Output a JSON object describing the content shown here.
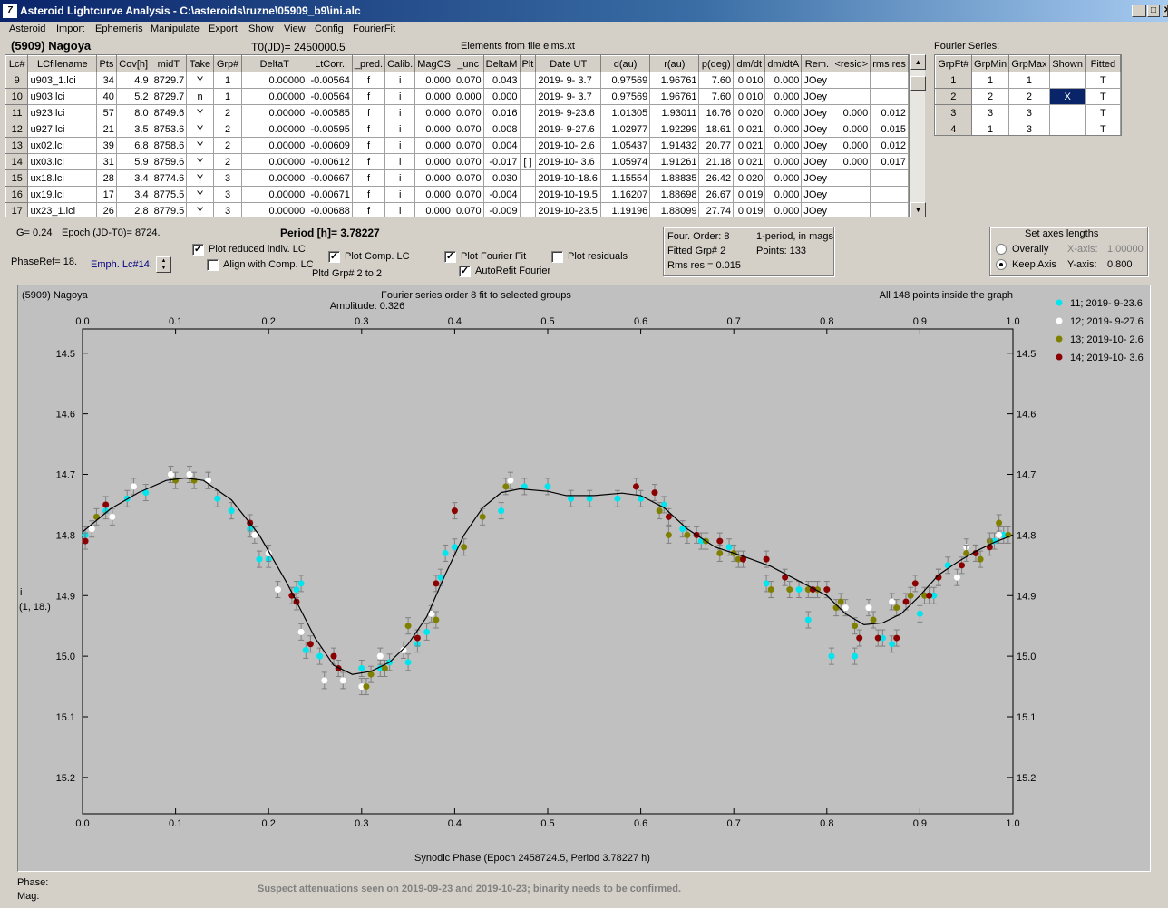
{
  "window": {
    "title": "Asteroid Lightcurve Analysis - C:\\asteroids\\ruzne\\05909_b9\\ini.alc",
    "icon_text": "7",
    "min_glyph": "_",
    "max_glyph": "□",
    "close_glyph": "✕"
  },
  "menu": [
    "Asteroid",
    "Import",
    "Ephemeris",
    "Manipulate",
    "Export",
    "Show",
    "View",
    "Config",
    "FourierFit"
  ],
  "header": {
    "asteroid": "(5909) Nagoya",
    "t0": "T0(JD)= 2450000.5",
    "elements": "Elements from file elms.xt",
    "fourier_series_label": "Fourier Series:"
  },
  "lc_table": {
    "columns": [
      "Lc#",
      "LCfilename",
      "Pts",
      "Cov[h]",
      "midT",
      "Take",
      "Grp#",
      "DeltaT",
      "LtCorr.",
      "_pred.",
      "Calib.",
      "MagCS",
      "_unc",
      "DeltaM",
      "Plt",
      "Date UT",
      "d(au)",
      "r(au)",
      "p(deg)",
      "dm/dt",
      "dm/dtA",
      "Rem.",
      "<resid>",
      "rms res"
    ],
    "rows": [
      [
        "9",
        "u903_1.lci",
        "34",
        "4.9",
        "8729.7",
        "Y",
        "1",
        "0.00000",
        "-0.00564",
        "f",
        "i",
        "0.000",
        "0.070",
        "0.043",
        "",
        "2019- 9- 3.7",
        "0.97569",
        "1.96761",
        "7.60",
        "0.010",
        "0.000",
        "JOey",
        "",
        ""
      ],
      [
        "10",
        "u903.lci",
        "40",
        "5.2",
        "8729.7",
        "n",
        "1",
        "0.00000",
        "-0.00564",
        "f",
        "i",
        "0.000",
        "0.000",
        "0.000",
        "",
        "2019- 9- 3.7",
        "0.97569",
        "1.96761",
        "7.60",
        "0.010",
        "0.000",
        "JOey",
        "",
        ""
      ],
      [
        "11",
        "u923.lci",
        "57",
        "8.0",
        "8749.6",
        "Y",
        "2",
        "0.00000",
        "-0.00585",
        "f",
        "i",
        "0.000",
        "0.070",
        "0.016",
        "",
        "2019- 9-23.6",
        "1.01305",
        "1.93011",
        "16.76",
        "0.020",
        "0.000",
        "JOey",
        "0.000",
        "0.012"
      ],
      [
        "12",
        "u927.lci",
        "21",
        "3.5",
        "8753.6",
        "Y",
        "2",
        "0.00000",
        "-0.00595",
        "f",
        "i",
        "0.000",
        "0.070",
        "0.008",
        "",
        "2019- 9-27.6",
        "1.02977",
        "1.92299",
        "18.61",
        "0.021",
        "0.000",
        "JOey",
        "0.000",
        "0.015"
      ],
      [
        "13",
        "ux02.lci",
        "39",
        "6.8",
        "8758.6",
        "Y",
        "2",
        "0.00000",
        "-0.00609",
        "f",
        "i",
        "0.000",
        "0.070",
        "0.004",
        "",
        "2019-10- 2.6",
        "1.05437",
        "1.91432",
        "20.77",
        "0.021",
        "0.000",
        "JOey",
        "0.000",
        "0.012"
      ],
      [
        "14",
        "ux03.lci",
        "31",
        "5.9",
        "8759.6",
        "Y",
        "2",
        "0.00000",
        "-0.00612",
        "f",
        "i",
        "0.000",
        "0.070",
        "-0.017",
        "[ ]",
        "2019-10- 3.6",
        "1.05974",
        "1.91261",
        "21.18",
        "0.021",
        "0.000",
        "JOey",
        "0.000",
        "0.017"
      ],
      [
        "15",
        "ux18.lci",
        "28",
        "3.4",
        "8774.6",
        "Y",
        "3",
        "0.00000",
        "-0.00667",
        "f",
        "i",
        "0.000",
        "0.070",
        "0.030",
        "",
        "2019-10-18.6",
        "1.15554",
        "1.88835",
        "26.42",
        "0.020",
        "0.000",
        "JOey",
        "",
        ""
      ],
      [
        "16",
        "ux19.lci",
        "17",
        "3.4",
        "8775.5",
        "Y",
        "3",
        "0.00000",
        "-0.00671",
        "f",
        "i",
        "0.000",
        "0.070",
        "-0.004",
        "",
        "2019-10-19.5",
        "1.16207",
        "1.88698",
        "26.67",
        "0.019",
        "0.000",
        "JOey",
        "",
        ""
      ],
      [
        "17",
        "ux23_1.lci",
        "26",
        "2.8",
        "8779.5",
        "Y",
        "3",
        "0.00000",
        "-0.00688",
        "f",
        "i",
        "0.000",
        "0.070",
        "-0.009",
        "",
        "2019-10-23.5",
        "1.19196",
        "1.88099",
        "27.74",
        "0.019",
        "0.000",
        "JOey",
        "",
        ""
      ]
    ]
  },
  "fourier_table": {
    "columns": [
      "GrpFt#",
      "GrpMin",
      "GrpMax",
      "Shown",
      "Fitted"
    ],
    "rows": [
      [
        "1",
        "1",
        "1",
        "",
        "T"
      ],
      [
        "2",
        "2",
        "2",
        "X",
        "T"
      ],
      [
        "3",
        "3",
        "3",
        "",
        "T"
      ],
      [
        "4",
        "1",
        "3",
        "",
        "T"
      ]
    ]
  },
  "controls": {
    "g_text": "G= 0.24",
    "epoch_text": "Epoch (JD-T0)= 8724.",
    "period_text": "Period [h]= 3.78227",
    "phaseref_text": "PhaseRef= 18.",
    "emph_text": "Emph. Lc#14:",
    "plot_reduced": "Plot reduced indiv. LC",
    "align_comp": "Align with Comp. LC",
    "plot_comp": "Plot Comp. LC",
    "pltd_grp": "Pltd Grp#  2  to   2",
    "plot_fourier": "Plot Fourier Fit",
    "autorefit": "AutoRefit Fourier",
    "plot_residuals": "Plot residuals",
    "check": "✓",
    "fit_info": {
      "four_order": "Four. Order:  8",
      "one_period": "1-period, in mags",
      "fitted_grp": "Fitted Grp# 2",
      "points": "Points: 133",
      "rms": "Rms res     = 0.015"
    },
    "axes": {
      "title": "Set axes lengths",
      "overally": "Overally",
      "keep_axis": "Keep Axis",
      "x_label": "X-axis:",
      "x_value": "1.00000",
      "y_label": "Y-axis:",
      "y_value": "0.800"
    }
  },
  "plot": {
    "top_left": "(5909) Nagoya",
    "subtitle1": "Fourier series order 8 fit to selected groups",
    "subtitle2": "Amplitude: 0.326",
    "top_right": "All 148 points inside the graph",
    "xlabel": "Synodic Phase (Epoch 2458724.5, Period 3.78227 h)",
    "ylabel_1": "i",
    "ylabel_2": "(1, 18.)",
    "phase_label": "Phase:",
    "mag_label": "Mag:",
    "note": "Suspect attenuations seen on 2019-09-23 and 2019-10-23; binarity needs to be confirmed."
  },
  "chart_data": {
    "type": "scatter",
    "xlim": [
      0.0,
      1.0
    ],
    "ylim": [
      15.26,
      14.46
    ],
    "y_inverted": true,
    "x_ticks": [
      "0.0",
      "0.1",
      "0.2",
      "0.3",
      "0.4",
      "0.5",
      "0.6",
      "0.7",
      "0.8",
      "0.9",
      "1.0"
    ],
    "y_ticks": [
      "14.5",
      "14.6",
      "14.7",
      "14.8",
      "14.9",
      "15.0",
      "15.1",
      "15.2"
    ],
    "legend_position": "right",
    "series": [
      {
        "name": "11; 2019- 9-23.6",
        "color": "#00e5ee",
        "points": [
          [
            0.003,
            14.8
          ],
          [
            0.025,
            14.76
          ],
          [
            0.048,
            14.74
          ],
          [
            0.068,
            14.73
          ],
          [
            0.135,
            14.71
          ],
          [
            0.145,
            14.74
          ],
          [
            0.16,
            14.76
          ],
          [
            0.18,
            14.79
          ],
          [
            0.19,
            14.84
          ],
          [
            0.2,
            14.84
          ],
          [
            0.23,
            14.89
          ],
          [
            0.235,
            14.88
          ],
          [
            0.24,
            14.99
          ],
          [
            0.255,
            15.0
          ],
          [
            0.3,
            15.02
          ],
          [
            0.32,
            15.02
          ],
          [
            0.33,
            15.01
          ],
          [
            0.35,
            15.01
          ],
          [
            0.36,
            14.98
          ],
          [
            0.37,
            14.96
          ],
          [
            0.385,
            14.87
          ],
          [
            0.39,
            14.83
          ],
          [
            0.4,
            14.82
          ],
          [
            0.45,
            14.76
          ],
          [
            0.475,
            14.72
          ],
          [
            0.5,
            14.72
          ],
          [
            0.525,
            14.74
          ],
          [
            0.545,
            14.74
          ],
          [
            0.575,
            14.74
          ],
          [
            0.6,
            14.74
          ],
          [
            0.625,
            14.75
          ],
          [
            0.645,
            14.79
          ],
          [
            0.665,
            14.81
          ],
          [
            0.695,
            14.82
          ],
          [
            0.735,
            14.88
          ],
          [
            0.77,
            14.89
          ],
          [
            0.78,
            14.94
          ],
          [
            0.805,
            15.0
          ],
          [
            0.83,
            15.0
          ],
          [
            0.86,
            14.97
          ],
          [
            0.87,
            14.98
          ],
          [
            0.9,
            14.93
          ],
          [
            0.915,
            14.9
          ],
          [
            0.93,
            14.85
          ],
          [
            0.96,
            14.83
          ],
          [
            0.98,
            14.81
          ],
          [
            0.99,
            14.8
          ]
        ]
      },
      {
        "name": "12; 2019- 9-27.6",
        "color": "#ffffff",
        "points": [
          [
            0.01,
            14.79
          ],
          [
            0.032,
            14.77
          ],
          [
            0.055,
            14.72
          ],
          [
            0.095,
            14.7
          ],
          [
            0.115,
            14.7
          ],
          [
            0.135,
            14.71
          ],
          [
            0.185,
            14.8
          ],
          [
            0.2,
            14.83
          ],
          [
            0.21,
            14.89
          ],
          [
            0.235,
            14.96
          ],
          [
            0.26,
            15.04
          ],
          [
            0.28,
            15.04
          ],
          [
            0.3,
            15.05
          ],
          [
            0.32,
            15.0
          ],
          [
            0.345,
            14.99
          ],
          [
            0.375,
            14.93
          ],
          [
            0.46,
            14.71
          ],
          [
            0.82,
            14.92
          ],
          [
            0.845,
            14.92
          ],
          [
            0.87,
            14.91
          ],
          [
            0.94,
            14.87
          ],
          [
            0.95,
            14.82
          ],
          [
            0.985,
            14.8
          ]
        ]
      },
      {
        "name": "13; 2019-10- 2.6",
        "color": "#808000",
        "points": [
          [
            0.015,
            14.77
          ],
          [
            0.1,
            14.71
          ],
          [
            0.12,
            14.71
          ],
          [
            0.305,
            15.05
          ],
          [
            0.31,
            15.03
          ],
          [
            0.325,
            15.02
          ],
          [
            0.35,
            14.95
          ],
          [
            0.38,
            14.94
          ],
          [
            0.41,
            14.82
          ],
          [
            0.43,
            14.77
          ],
          [
            0.455,
            14.72
          ],
          [
            0.62,
            14.76
          ],
          [
            0.63,
            14.8
          ],
          [
            0.65,
            14.8
          ],
          [
            0.67,
            14.81
          ],
          [
            0.685,
            14.83
          ],
          [
            0.7,
            14.83
          ],
          [
            0.705,
            14.84
          ],
          [
            0.74,
            14.89
          ],
          [
            0.76,
            14.89
          ],
          [
            0.78,
            14.89
          ],
          [
            0.79,
            14.89
          ],
          [
            0.81,
            14.92
          ],
          [
            0.815,
            14.91
          ],
          [
            0.83,
            14.95
          ],
          [
            0.85,
            14.94
          ],
          [
            0.875,
            14.92
          ],
          [
            0.89,
            14.9
          ],
          [
            0.905,
            14.9
          ],
          [
            0.92,
            14.87
          ],
          [
            0.95,
            14.83
          ],
          [
            0.965,
            14.84
          ],
          [
            0.975,
            14.81
          ],
          [
            0.985,
            14.78
          ],
          [
            0.995,
            14.8
          ]
        ]
      },
      {
        "name": "14; 2019-10- 3.6",
        "color": "#8b0000",
        "points": [
          [
            0.003,
            14.81
          ],
          [
            0.025,
            14.75
          ],
          [
            0.18,
            14.78
          ],
          [
            0.225,
            14.9
          ],
          [
            0.23,
            14.91
          ],
          [
            0.245,
            14.98
          ],
          [
            0.27,
            15.0
          ],
          [
            0.275,
            15.02
          ],
          [
            0.36,
            14.97
          ],
          [
            0.38,
            14.88
          ],
          [
            0.4,
            14.76
          ],
          [
            0.595,
            14.72
          ],
          [
            0.615,
            14.73
          ],
          [
            0.63,
            14.77
          ],
          [
            0.66,
            14.8
          ],
          [
            0.685,
            14.81
          ],
          [
            0.71,
            14.84
          ],
          [
            0.735,
            14.84
          ],
          [
            0.755,
            14.87
          ],
          [
            0.785,
            14.89
          ],
          [
            0.8,
            14.89
          ],
          [
            0.835,
            14.97
          ],
          [
            0.855,
            14.97
          ],
          [
            0.875,
            14.97
          ],
          [
            0.885,
            14.91
          ],
          [
            0.895,
            14.88
          ],
          [
            0.91,
            14.9
          ],
          [
            0.92,
            14.87
          ],
          [
            0.945,
            14.85
          ],
          [
            0.96,
            14.83
          ],
          [
            0.975,
            14.82
          ]
        ]
      }
    ],
    "fit_curve": [
      [
        0.0,
        14.795
      ],
      [
        0.03,
        14.757
      ],
      [
        0.06,
        14.73
      ],
      [
        0.09,
        14.71
      ],
      [
        0.11,
        14.706
      ],
      [
        0.13,
        14.71
      ],
      [
        0.16,
        14.742
      ],
      [
        0.19,
        14.8
      ],
      [
        0.22,
        14.88
      ],
      [
        0.25,
        14.97
      ],
      [
        0.27,
        15.015
      ],
      [
        0.29,
        15.03
      ],
      [
        0.31,
        15.025
      ],
      [
        0.33,
        15.01
      ],
      [
        0.35,
        14.98
      ],
      [
        0.37,
        14.935
      ],
      [
        0.39,
        14.865
      ],
      [
        0.41,
        14.8
      ],
      [
        0.43,
        14.755
      ],
      [
        0.45,
        14.73
      ],
      [
        0.47,
        14.724
      ],
      [
        0.5,
        14.728
      ],
      [
        0.52,
        14.735
      ],
      [
        0.55,
        14.735
      ],
      [
        0.58,
        14.731
      ],
      [
        0.6,
        14.735
      ],
      [
        0.625,
        14.755
      ],
      [
        0.65,
        14.79
      ],
      [
        0.68,
        14.82
      ],
      [
        0.71,
        14.835
      ],
      [
        0.74,
        14.852
      ],
      [
        0.77,
        14.876
      ],
      [
        0.8,
        14.9
      ],
      [
        0.82,
        14.93
      ],
      [
        0.84,
        14.948
      ],
      [
        0.86,
        14.945
      ],
      [
        0.88,
        14.93
      ],
      [
        0.9,
        14.9
      ],
      [
        0.92,
        14.866
      ],
      [
        0.94,
        14.845
      ],
      [
        0.96,
        14.827
      ],
      [
        0.98,
        14.812
      ],
      [
        1.0,
        14.8
      ]
    ]
  }
}
